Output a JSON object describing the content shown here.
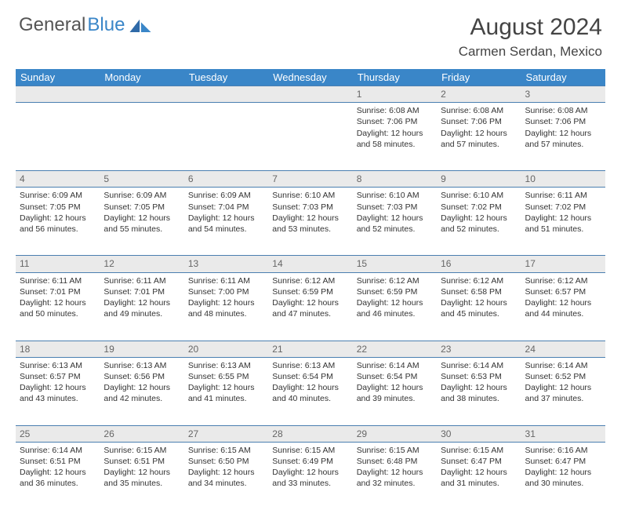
{
  "logo": {
    "text1": "General",
    "text2": "Blue"
  },
  "title": "August 2024",
  "location": "Carmen Serdan, Mexico",
  "weekdays": [
    "Sunday",
    "Monday",
    "Tuesday",
    "Wednesday",
    "Thursday",
    "Friday",
    "Saturday"
  ],
  "colors": {
    "header_bg": "#3a86c8",
    "header_text": "#ffffff",
    "daynum_bg": "#eaeaea",
    "border": "#4a7fb0",
    "text": "#333333",
    "logo_gray": "#555555",
    "logo_blue": "#3a86c8"
  },
  "weeks": [
    {
      "nums": [
        "",
        "",
        "",
        "",
        "1",
        "2",
        "3"
      ],
      "cells": [
        "",
        "",
        "",
        "",
        "Sunrise: 6:08 AM\nSunset: 7:06 PM\nDaylight: 12 hours and 58 minutes.",
        "Sunrise: 6:08 AM\nSunset: 7:06 PM\nDaylight: 12 hours and 57 minutes.",
        "Sunrise: 6:08 AM\nSunset: 7:06 PM\nDaylight: 12 hours and 57 minutes."
      ]
    },
    {
      "nums": [
        "4",
        "5",
        "6",
        "7",
        "8",
        "9",
        "10"
      ],
      "cells": [
        "Sunrise: 6:09 AM\nSunset: 7:05 PM\nDaylight: 12 hours and 56 minutes.",
        "Sunrise: 6:09 AM\nSunset: 7:05 PM\nDaylight: 12 hours and 55 minutes.",
        "Sunrise: 6:09 AM\nSunset: 7:04 PM\nDaylight: 12 hours and 54 minutes.",
        "Sunrise: 6:10 AM\nSunset: 7:03 PM\nDaylight: 12 hours and 53 minutes.",
        "Sunrise: 6:10 AM\nSunset: 7:03 PM\nDaylight: 12 hours and 52 minutes.",
        "Sunrise: 6:10 AM\nSunset: 7:02 PM\nDaylight: 12 hours and 52 minutes.",
        "Sunrise: 6:11 AM\nSunset: 7:02 PM\nDaylight: 12 hours and 51 minutes."
      ]
    },
    {
      "nums": [
        "11",
        "12",
        "13",
        "14",
        "15",
        "16",
        "17"
      ],
      "cells": [
        "Sunrise: 6:11 AM\nSunset: 7:01 PM\nDaylight: 12 hours and 50 minutes.",
        "Sunrise: 6:11 AM\nSunset: 7:01 PM\nDaylight: 12 hours and 49 minutes.",
        "Sunrise: 6:11 AM\nSunset: 7:00 PM\nDaylight: 12 hours and 48 minutes.",
        "Sunrise: 6:12 AM\nSunset: 6:59 PM\nDaylight: 12 hours and 47 minutes.",
        "Sunrise: 6:12 AM\nSunset: 6:59 PM\nDaylight: 12 hours and 46 minutes.",
        "Sunrise: 6:12 AM\nSunset: 6:58 PM\nDaylight: 12 hours and 45 minutes.",
        "Sunrise: 6:12 AM\nSunset: 6:57 PM\nDaylight: 12 hours and 44 minutes."
      ]
    },
    {
      "nums": [
        "18",
        "19",
        "20",
        "21",
        "22",
        "23",
        "24"
      ],
      "cells": [
        "Sunrise: 6:13 AM\nSunset: 6:57 PM\nDaylight: 12 hours and 43 minutes.",
        "Sunrise: 6:13 AM\nSunset: 6:56 PM\nDaylight: 12 hours and 42 minutes.",
        "Sunrise: 6:13 AM\nSunset: 6:55 PM\nDaylight: 12 hours and 41 minutes.",
        "Sunrise: 6:13 AM\nSunset: 6:54 PM\nDaylight: 12 hours and 40 minutes.",
        "Sunrise: 6:14 AM\nSunset: 6:54 PM\nDaylight: 12 hours and 39 minutes.",
        "Sunrise: 6:14 AM\nSunset: 6:53 PM\nDaylight: 12 hours and 38 minutes.",
        "Sunrise: 6:14 AM\nSunset: 6:52 PM\nDaylight: 12 hours and 37 minutes."
      ]
    },
    {
      "nums": [
        "25",
        "26",
        "27",
        "28",
        "29",
        "30",
        "31"
      ],
      "cells": [
        "Sunrise: 6:14 AM\nSunset: 6:51 PM\nDaylight: 12 hours and 36 minutes.",
        "Sunrise: 6:15 AM\nSunset: 6:51 PM\nDaylight: 12 hours and 35 minutes.",
        "Sunrise: 6:15 AM\nSunset: 6:50 PM\nDaylight: 12 hours and 34 minutes.",
        "Sunrise: 6:15 AM\nSunset: 6:49 PM\nDaylight: 12 hours and 33 minutes.",
        "Sunrise: 6:15 AM\nSunset: 6:48 PM\nDaylight: 12 hours and 32 minutes.",
        "Sunrise: 6:15 AM\nSunset: 6:47 PM\nDaylight: 12 hours and 31 minutes.",
        "Sunrise: 6:16 AM\nSunset: 6:47 PM\nDaylight: 12 hours and 30 minutes."
      ]
    }
  ]
}
